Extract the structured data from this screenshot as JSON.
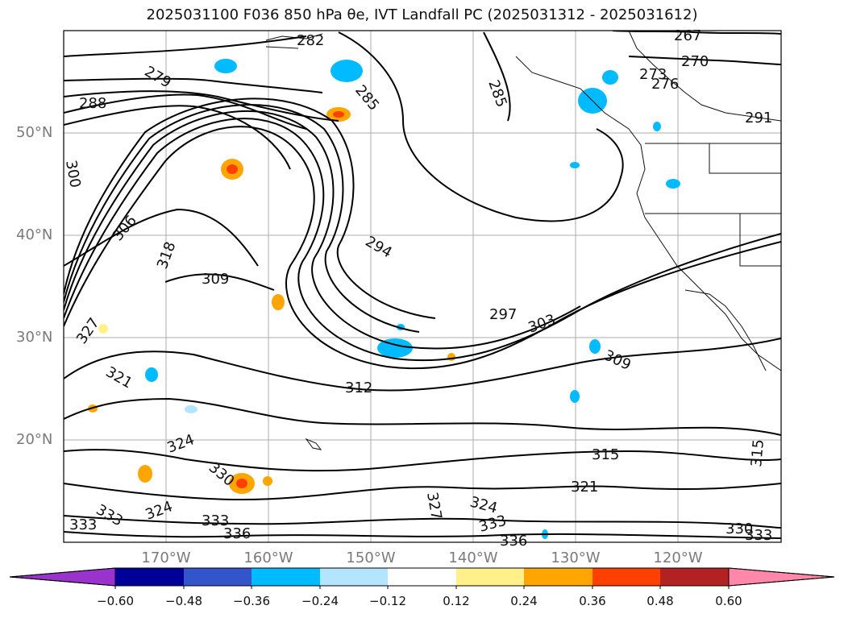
{
  "title": "2025031100 F036 850 hPa θe, IVT Landfall PC (2025031312 - 2025031612)",
  "lat_labels": [
    "50°N",
    "40°N",
    "30°N",
    "20°N"
  ],
  "lon_labels": [
    "170°W",
    "160°W",
    "150°W",
    "140°W",
    "130°W",
    "120°W"
  ],
  "contour_labels": [
    "282",
    "267",
    "270",
    "279",
    "288",
    "285",
    "285",
    "273",
    "276",
    "291",
    "300",
    "306",
    "318",
    "309",
    "294",
    "327",
    "297",
    "303",
    "309",
    "312",
    "321",
    "324",
    "330",
    "315",
    "321",
    "324",
    "327",
    "333",
    "324",
    "333",
    "336",
    "333",
    "336",
    "333",
    "330",
    "333",
    "315"
  ],
  "colorbar": {
    "ticks": [
      "−0.60",
      "−0.48",
      "−0.36",
      "−0.24",
      "−0.12",
      "0.12",
      "0.24",
      "0.36",
      "0.48",
      "0.60"
    ],
    "colors": [
      "#9933cc",
      "#000099",
      "#3355cc",
      "#00bbff",
      "#b3e5ff",
      "#ffffff",
      "#fff08a",
      "#ffa500",
      "#ff4000",
      "#b22222",
      "#ff88aa"
    ]
  }
}
